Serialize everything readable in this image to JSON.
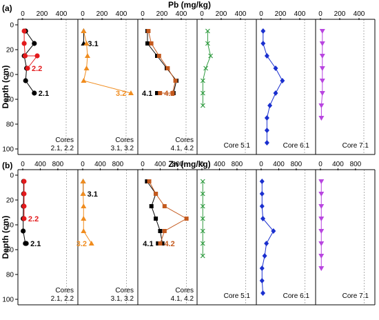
{
  "chart_data": [
    {
      "type": "line",
      "label": "(a)",
      "title": "Pb (mg/kg)",
      "ylabel": "Depth (cm)",
      "ylim": [
        0,
        100
      ],
      "y_ticks": [
        0,
        20,
        40,
        60,
        80,
        100
      ],
      "x_ticks": [
        0,
        200,
        400
      ],
      "panels": [
        {
          "caption": "Cores\n2.1, 2.2",
          "xlim": [
            0,
            500
          ],
          "guide": 450,
          "series": [
            {
              "name": "2.1",
              "color": "#000000",
              "marker": "circle",
              "x": [
                30,
                120,
                15,
                40,
                30,
                120
              ],
              "y": [
                5,
                15,
                25,
                35,
                45,
                55
              ]
            },
            {
              "name": "2.2",
              "color": "#e31a1c",
              "marker": "circle",
              "x": [
                15,
                15,
                25,
                150,
                50
              ],
              "y": [
                5,
                15,
                25,
                25,
                35
              ]
            }
          ]
        },
        {
          "caption": "Cores\n3.1, 3.2",
          "xlim": [
            0,
            500
          ],
          "guide": 450,
          "series": [
            {
              "name": "3.1",
              "color": "#000000",
              "marker": "triangle",
              "x": [
                10,
                10
              ],
              "y": [
                5,
                15
              ]
            },
            {
              "name": "3.2",
              "color": "#f08c1e",
              "marker": "triangle",
              "x": [
                10,
                40,
                50,
                40,
                10,
                500
              ],
              "y": [
                5,
                15,
                25,
                35,
                45,
                55
              ]
            }
          ]
        },
        {
          "caption": "Cores\n4.1, 4.2",
          "xlim": [
            0,
            500
          ],
          "guide": 450,
          "series": [
            {
              "name": "4.1",
              "color": "#000000",
              "marker": "square",
              "x": [
                50,
                50,
                150,
                250,
                350,
                320,
                150
              ],
              "y": [
                5,
                15,
                25,
                35,
                45,
                55,
                55
              ]
            },
            {
              "name": "4.2",
              "color": "#c45a1e",
              "marker": "square",
              "x": [
                60,
                90,
                170,
                260,
                340,
                310,
                180
              ],
              "y": [
                5,
                15,
                25,
                35,
                45,
                55,
                55
              ]
            }
          ]
        },
        {
          "caption": "Core 5.1",
          "xlim": [
            0,
            500
          ],
          "guide": 450,
          "series": [
            {
              "name": "5.1",
              "color": "#2e9a3e",
              "marker": "x",
              "x": [
                60,
                60,
                90,
                40,
                10,
                10,
                10
              ],
              "y": [
                5,
                15,
                25,
                35,
                45,
                55,
                65
              ]
            }
          ]
        },
        {
          "caption": "Core 6.1",
          "xlim": [
            0,
            500
          ],
          "guide": 450,
          "series": [
            {
              "name": "6.1",
              "color": "#1a2fcf",
              "marker": "diamond",
              "x": [
                20,
                20,
                60,
                150,
                220,
                150,
                90,
                60,
                60,
                60
              ],
              "y": [
                5,
                15,
                25,
                35,
                45,
                55,
                65,
                75,
                85,
                95
              ]
            }
          ]
        },
        {
          "caption": "Core 7.1",
          "xlim": [
            0,
            500
          ],
          "guide": 450,
          "series": [
            {
              "name": "7.1",
              "color": "#b844e0",
              "marker": "triangle-down",
              "x": [
                20,
                20,
                20,
                20,
                20,
                20,
                10,
                10
              ],
              "y": [
                5,
                15,
                25,
                35,
                45,
                55,
                65,
                75
              ]
            }
          ]
        }
      ]
    },
    {
      "type": "line",
      "label": "(b)",
      "title": "Zn (mg/kg)",
      "ylabel": "Depth (cm)",
      "ylim": [
        0,
        100
      ],
      "y_ticks": [
        0,
        20,
        40,
        60,
        80,
        100
      ],
      "x_ticks": [
        0,
        400,
        800
      ],
      "panels": [
        {
          "caption": "Cores\n2.1, 2.2",
          "xlim": [
            0,
            1100
          ],
          "guide": 1000,
          "series": [
            {
              "name": "2.1",
              "color": "#000000",
              "marker": "circle",
              "x": [
                20,
                20,
                15,
                10,
                10,
                60,
                80
              ],
              "y": [
                5,
                15,
                25,
                35,
                45,
                55,
                55
              ]
            },
            {
              "name": "2.2",
              "color": "#e31a1c",
              "marker": "circle",
              "x": [
                30,
                30,
                30,
                30
              ],
              "y": [
                5,
                15,
                25,
                35
              ]
            }
          ]
        },
        {
          "caption": "Cores\n3.1, 3.2",
          "xlim": [
            0,
            1100
          ],
          "guide": 1000,
          "series": [
            {
              "name": "3.1",
              "color": "#000000",
              "marker": "triangle",
              "x": [
                10,
                10
              ],
              "y": [
                5,
                15
              ]
            },
            {
              "name": "3.2",
              "color": "#f08c1e",
              "marker": "triangle",
              "x": [
                10,
                10,
                20,
                20,
                20,
                200
              ],
              "y": [
                5,
                15,
                25,
                35,
                45,
                55
              ]
            }
          ]
        },
        {
          "caption": "Cores\n4.1, 4.2",
          "xlim": [
            0,
            1100
          ],
          "guide": 1000,
          "series": [
            {
              "name": "4.1",
              "color": "#000000",
              "marker": "square",
              "x": [
                100,
                300,
                200,
                300,
                400,
                450,
                350
              ],
              "y": [
                5,
                15,
                25,
                35,
                45,
                55,
                55
              ]
            },
            {
              "name": "4.2",
              "color": "#c45a1e",
              "marker": "square",
              "x": [
                150,
                300,
                500,
                1000,
                500,
                400
              ],
              "y": [
                5,
                15,
                25,
                35,
                45,
                55
              ]
            }
          ]
        },
        {
          "caption": "Core 5.1",
          "xlim": [
            0,
            1100
          ],
          "guide": 1000,
          "series": [
            {
              "name": "5.1",
              "color": "#2e9a3e",
              "marker": "x",
              "x": [
                20,
                20,
                20,
                20,
                20,
                20,
                20
              ],
              "y": [
                5,
                15,
                25,
                35,
                45,
                55,
                65
              ]
            }
          ]
        },
        {
          "caption": "Core 6.1",
          "xlim": [
            0,
            1100
          ],
          "guide": 1000,
          "series": [
            {
              "name": "6.1",
              "color": "#1a2fcf",
              "marker": "diamond",
              "x": [
                20,
                20,
                20,
                40,
                280,
                120,
                80,
                20,
                20,
                40
              ],
              "y": [
                5,
                15,
                25,
                35,
                45,
                55,
                65,
                75,
                85,
                95
              ]
            }
          ]
        },
        {
          "caption": "Core 7.1",
          "xlim": [
            0,
            1100
          ],
          "guide": 1000,
          "series": [
            {
              "name": "7.1",
              "color": "#b844e0",
              "marker": "triangle-down",
              "x": [
                20,
                20,
                20,
                20,
                20,
                20,
                20,
                20
              ],
              "y": [
                5,
                15,
                25,
                35,
                45,
                55,
                65,
                75
              ]
            }
          ]
        }
      ]
    }
  ]
}
